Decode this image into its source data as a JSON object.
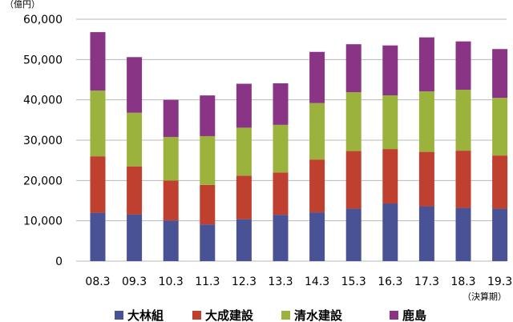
{
  "chart_data": {
    "type": "bar",
    "stacked": true,
    "y_unit_label": "（億円）",
    "x_unit_label": "（決算期）",
    "categories": [
      "08.3",
      "09.3",
      "10.3",
      "11.3",
      "12.3",
      "13.3",
      "14.3",
      "15.3",
      "16.3",
      "17.3",
      "18.3",
      "19.3"
    ],
    "ylim": [
      0,
      60000
    ],
    "yticks": [
      0,
      10000,
      20000,
      30000,
      40000,
      50000,
      60000
    ],
    "ytick_labels": [
      "0",
      "10,000",
      "20,000",
      "30,000",
      "40,000",
      "50,000",
      "60,000"
    ],
    "grid": true,
    "legend_position": "bottom",
    "series": [
      {
        "name": "大林組",
        "color": "#4a5296",
        "values": [
          12000,
          11600,
          10100,
          9100,
          10400,
          11500,
          12100,
          13000,
          14300,
          13600,
          13200,
          13000
        ]
      },
      {
        "name": "大成建設",
        "color": "#c0402f",
        "values": [
          14000,
          11900,
          9900,
          9800,
          10800,
          10500,
          13100,
          14300,
          13500,
          13500,
          14200,
          13200
        ]
      },
      {
        "name": "清水建設",
        "color": "#9bb23c",
        "values": [
          16300,
          13300,
          10800,
          12100,
          11900,
          11800,
          14000,
          14600,
          13300,
          15000,
          15100,
          14300
        ]
      },
      {
        "name": "鹿島",
        "color": "#8a3485",
        "values": [
          14500,
          13800,
          9200,
          10100,
          10900,
          10300,
          12700,
          11900,
          12400,
          13400,
          12000,
          12100
        ]
      }
    ]
  }
}
